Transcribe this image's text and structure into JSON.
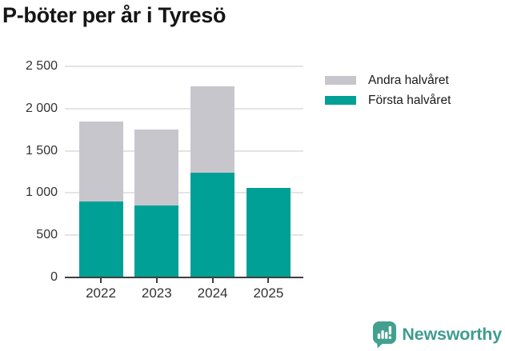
{
  "title": "P-böter per år i Tyresö",
  "legend": {
    "items": [
      {
        "label": "Andra halvåret",
        "color": "#c8c6cd"
      },
      {
        "label": "Första halvåret",
        "color": "#00a096"
      }
    ]
  },
  "brand": {
    "name": "Newsworthy",
    "color": "#3f9c8e",
    "icon": "newsworthy-speech-bubble-chart-icon",
    "icon_color": "#42a08f"
  },
  "colors": {
    "forsta_halvaret": "#00a096",
    "andra_halvaret": "#c8c6cd",
    "axis": "#3f3f3f",
    "gridline": "#e4e4e4",
    "tick_text": "#333333",
    "title_text": "#151515"
  },
  "chart_data": {
    "type": "bar",
    "stacked": true,
    "title": "P-böter per år i Tyresö",
    "categories": [
      "2022",
      "2023",
      "2024",
      "2025"
    ],
    "series": [
      {
        "name": "Första halvåret",
        "color": "#00a096",
        "values": [
          900,
          850,
          1240,
          1060
        ]
      },
      {
        "name": "Andra halvåret",
        "color": "#c8c6cd",
        "values": [
          950,
          900,
          1020,
          0
        ]
      }
    ],
    "totals": [
      1850,
      1750,
      2260,
      1060
    ],
    "xlabel": "",
    "ylabel": "",
    "ylim": [
      0,
      2500
    ],
    "yticks": [
      0,
      500,
      1000,
      1500,
      2000,
      2500
    ],
    "ytick_labels": [
      "0",
      "500",
      "1 000",
      "1 500",
      "2 000",
      "2 500"
    ],
    "grid": true,
    "legend_position": "right-top"
  }
}
